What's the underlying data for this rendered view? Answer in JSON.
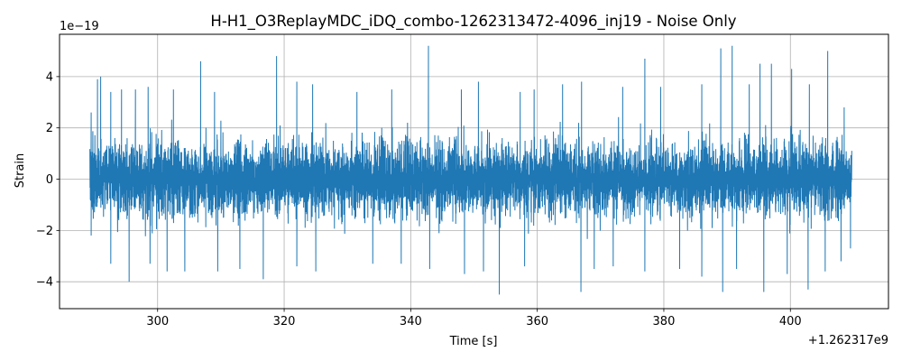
{
  "chart_data": {
    "type": "line",
    "title": "H-H1_O3ReplayMDC_iDQ_combo-1262313472-4096_inj19 - Noise Only",
    "xlabel": "Time [s]",
    "ylabel": "Strain",
    "x_offset_label": "+1.262317e9",
    "y_scale_label": "1e−19",
    "xlim": [
      284.5,
      415.5
    ],
    "ylim": [
      -5.05,
      5.65
    ],
    "x_ticks": [
      300,
      320,
      340,
      360,
      380,
      400
    ],
    "x_tick_labels": [
      "300",
      "320",
      "340",
      "360",
      "380",
      "400"
    ],
    "y_ticks": [
      -4,
      -2,
      0,
      2,
      4
    ],
    "y_tick_labels": [
      "−4",
      "−2",
      "0",
      "2",
      "4"
    ],
    "grid": true,
    "series": [
      {
        "color": "#1f77b4",
        "x_start": 289.3,
        "x_end": 409.7,
        "typical_envelope": [
          -2.0,
          2.0
        ],
        "peaks": [
          {
            "x": 289.5,
            "y": 2.6
          },
          {
            "x": 290.5,
            "y": 3.9
          },
          {
            "x": 291.0,
            "y": 4.0
          },
          {
            "x": 292.6,
            "y": 3.4
          },
          {
            "x": 294.3,
            "y": 3.5
          },
          {
            "x": 296.5,
            "y": 3.5
          },
          {
            "x": 298.5,
            "y": 3.6
          },
          {
            "x": 302.5,
            "y": 3.5
          },
          {
            "x": 306.8,
            "y": 4.6
          },
          {
            "x": 309.0,
            "y": 3.4
          },
          {
            "x": 318.8,
            "y": 4.8
          },
          {
            "x": 322.0,
            "y": 3.8
          },
          {
            "x": 324.5,
            "y": 3.7
          },
          {
            "x": 331.5,
            "y": 3.4
          },
          {
            "x": 337.0,
            "y": 3.5
          },
          {
            "x": 342.8,
            "y": 5.2
          },
          {
            "x": 348.0,
            "y": 3.5
          },
          {
            "x": 350.7,
            "y": 3.8
          },
          {
            "x": 357.3,
            "y": 3.4
          },
          {
            "x": 359.5,
            "y": 3.5
          },
          {
            "x": 364.0,
            "y": 3.7
          },
          {
            "x": 367.0,
            "y": 3.8
          },
          {
            "x": 373.5,
            "y": 3.6
          },
          {
            "x": 377.0,
            "y": 4.7
          },
          {
            "x": 379.5,
            "y": 3.6
          },
          {
            "x": 386.0,
            "y": 3.7
          },
          {
            "x": 389.0,
            "y": 5.1
          },
          {
            "x": 390.8,
            "y": 5.2
          },
          {
            "x": 393.5,
            "y": 3.7
          },
          {
            "x": 395.2,
            "y": 4.5
          },
          {
            "x": 397.0,
            "y": 4.5
          },
          {
            "x": 400.2,
            "y": 4.3
          },
          {
            "x": 403.0,
            "y": 3.7
          },
          {
            "x": 405.9,
            "y": 5.0
          },
          {
            "x": 408.5,
            "y": 2.8
          },
          {
            "x": 289.5,
            "y": -2.2
          },
          {
            "x": 292.6,
            "y": -3.3
          },
          {
            "x": 295.5,
            "y": -4.0
          },
          {
            "x": 298.8,
            "y": -3.3
          },
          {
            "x": 301.5,
            "y": -3.6
          },
          {
            "x": 304.3,
            "y": -3.6
          },
          {
            "x": 309.5,
            "y": -3.6
          },
          {
            "x": 313.0,
            "y": -3.5
          },
          {
            "x": 316.7,
            "y": -3.9
          },
          {
            "x": 322.0,
            "y": -3.4
          },
          {
            "x": 325.0,
            "y": -3.6
          },
          {
            "x": 334.0,
            "y": -3.3
          },
          {
            "x": 338.5,
            "y": -3.3
          },
          {
            "x": 343.0,
            "y": -3.5
          },
          {
            "x": 348.5,
            "y": -3.7
          },
          {
            "x": 351.5,
            "y": -3.6
          },
          {
            "x": 354.0,
            "y": -4.5
          },
          {
            "x": 358.0,
            "y": -3.4
          },
          {
            "x": 366.9,
            "y": -4.4
          },
          {
            "x": 369.0,
            "y": -3.5
          },
          {
            "x": 372.0,
            "y": -3.4
          },
          {
            "x": 377.0,
            "y": -3.6
          },
          {
            "x": 382.5,
            "y": -3.5
          },
          {
            "x": 386.0,
            "y": -3.8
          },
          {
            "x": 389.3,
            "y": -4.4
          },
          {
            "x": 391.5,
            "y": -3.5
          },
          {
            "x": 395.8,
            "y": -4.4
          },
          {
            "x": 399.5,
            "y": -3.7
          },
          {
            "x": 402.8,
            "y": -4.3
          },
          {
            "x": 405.5,
            "y": -3.6
          },
          {
            "x": 408.0,
            "y": -3.2
          },
          {
            "x": 409.5,
            "y": -2.7
          }
        ]
      }
    ]
  }
}
